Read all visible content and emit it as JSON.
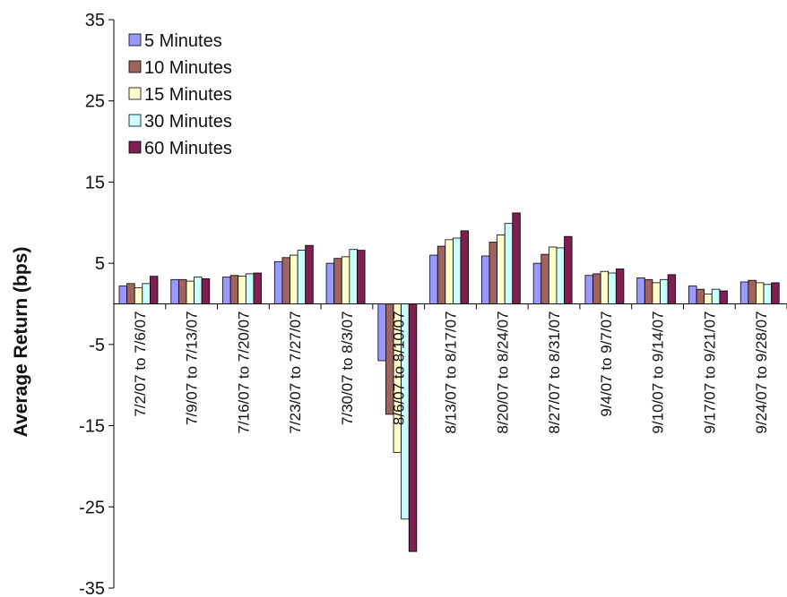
{
  "chart_data": {
    "type": "bar",
    "title": "",
    "xlabel": "",
    "ylabel": "Average Return (bps)",
    "ylim": [
      -35,
      35
    ],
    "yticks": [
      35,
      25,
      15,
      5,
      -5,
      -15,
      -25,
      -35
    ],
    "grid": false,
    "legend_position": "top-left",
    "categories": [
      "7/2/07 to 7/6/07",
      "7/9/07 to 7/13/07",
      "7/16/07 to 7/20/07",
      "7/23/07 to 7/27/07",
      "7/30/07 to 8/3/07",
      "8/6/07 to 8/10/07",
      "8/13/07 to 8/17/07",
      "8/20/07 to 8/24/07",
      "8/27/07 to 8/31/07",
      "9/4/07 to 9/7/07",
      "9/10/07 to 9/14/07",
      "9/17/07 to 9/21/07",
      "9/24/07 to 9/28/07"
    ],
    "series": [
      {
        "name": "5 Minutes",
        "color": "#9999ff",
        "values": [
          2.2,
          3.0,
          3.3,
          5.2,
          5.0,
          -7.0,
          6.0,
          5.9,
          5.0,
          3.5,
          3.2,
          2.2,
          2.7
        ]
      },
      {
        "name": "10 Minutes",
        "color": "#a0645f",
        "values": [
          2.5,
          3.0,
          3.5,
          5.7,
          5.6,
          -13.6,
          7.1,
          7.6,
          6.1,
          3.7,
          3.0,
          1.8,
          2.9
        ]
      },
      {
        "name": "15 Minutes",
        "color": "#ffffcc",
        "values": [
          2.0,
          2.8,
          3.4,
          6.0,
          5.8,
          -18.3,
          7.9,
          8.5,
          7.0,
          4.0,
          2.6,
          1.2,
          2.6
        ]
      },
      {
        "name": "30 Minutes",
        "color": "#ccffff",
        "values": [
          2.5,
          3.3,
          3.7,
          6.6,
          6.7,
          -26.5,
          8.1,
          9.9,
          6.9,
          3.8,
          3.0,
          1.8,
          2.4
        ]
      },
      {
        "name": "60 Minutes",
        "color": "#7f1f4f",
        "values": [
          3.4,
          3.1,
          3.8,
          7.2,
          6.6,
          -30.5,
          9.0,
          11.2,
          8.3,
          4.3,
          3.6,
          1.6,
          2.6
        ]
      }
    ]
  }
}
